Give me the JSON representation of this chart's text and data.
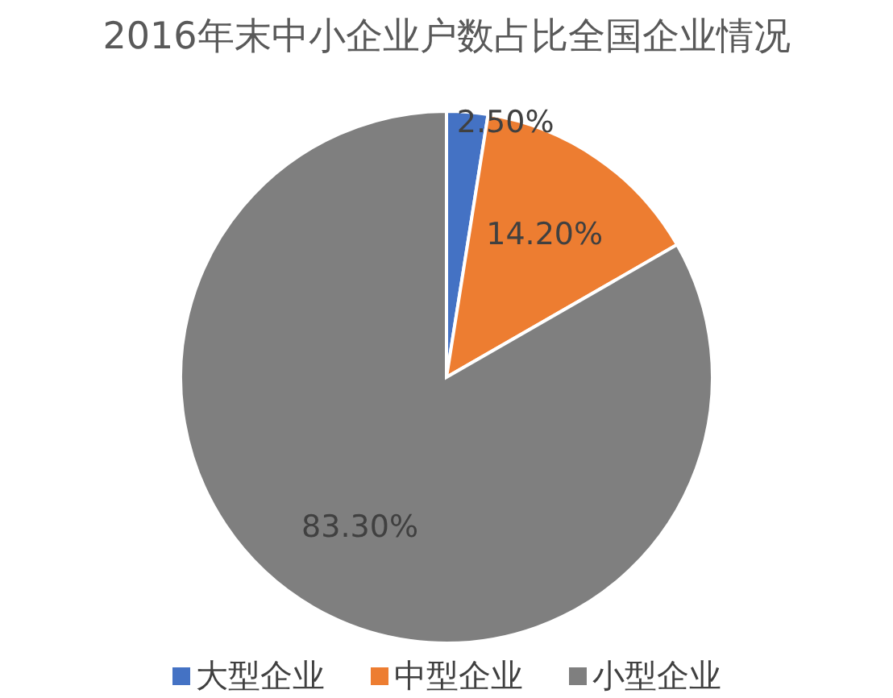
{
  "chart_data": {
    "type": "pie",
    "title": "2016年末中小企业户数占比全国企业情况",
    "categories": [
      "大型企业",
      "中型企业",
      "小型企业"
    ],
    "values": [
      2.5,
      14.2,
      83.3
    ],
    "colors": [
      "#4472c4",
      "#ed7d31",
      "#7f7f7f"
    ],
    "value_labels": [
      "2.50%",
      "14.20%",
      "83.30%"
    ],
    "legend": "bottom"
  }
}
